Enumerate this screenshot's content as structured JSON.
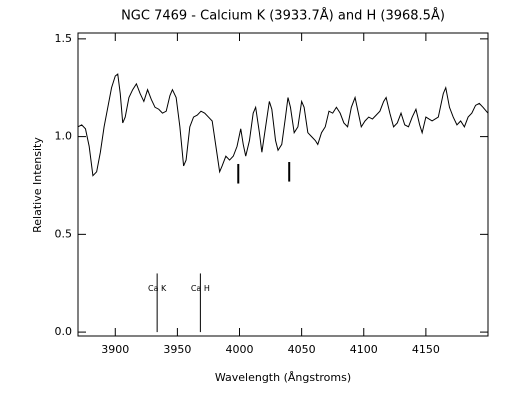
{
  "chart_data": {
    "type": "line",
    "title": "NGC 7469 - Calcium K (3933.7Å) and H (3968.5Å)",
    "xlabel": "Wavelength (Ångstroms)",
    "ylabel": "Relative Intensity",
    "color": "#000000",
    "xlim": [
      3870,
      4200
    ],
    "ylim": [
      -0.02,
      1.53
    ],
    "xticks": [
      3900,
      3950,
      4000,
      4050,
      4100,
      4150
    ],
    "yticks": [
      {
        "value": 0,
        "label": "0.0"
      },
      0.5,
      {
        "value": 1,
        "label": "1.0"
      },
      1.5
    ],
    "x": [
      3870,
      3873,
      3876,
      3879,
      3882,
      3885,
      3888,
      3891,
      3894,
      3897,
      3900,
      3902,
      3904,
      3906,
      3908,
      3911,
      3914,
      3917,
      3920,
      3923,
      3926,
      3929,
      3932,
      3935,
      3938,
      3941,
      3944,
      3946,
      3949,
      3952,
      3955,
      3957,
      3960,
      3963,
      3966,
      3969,
      3972,
      3975,
      3978,
      3981,
      3984,
      3986,
      3989,
      3992,
      3995,
      3998,
      4001,
      4003,
      4005,
      4008,
      4011,
      4013,
      4016,
      4018,
      4021,
      4024,
      4026,
      4029,
      4031,
      4034,
      4037,
      4039,
      4041,
      4044,
      4047,
      4050,
      4052,
      4055,
      4058,
      4061,
      4063,
      4066,
      4069,
      4072,
      4075,
      4078,
      4081,
      4084,
      4087,
      4090,
      4093,
      4095,
      4098,
      4101,
      4104,
      4107,
      4110,
      4113,
      4116,
      4118,
      4121,
      4124,
      4127,
      4130,
      4133,
      4136,
      4139,
      4142,
      4145,
      4147,
      4150,
      4155,
      4160,
      4164,
      4166,
      4169,
      4172,
      4175,
      4178,
      4181,
      4184,
      4187,
      4190,
      4193,
      4196,
      4200
    ],
    "values": [
      1.05,
      1.06,
      1.04,
      0.95,
      0.8,
      0.82,
      0.92,
      1.05,
      1.15,
      1.25,
      1.31,
      1.32,
      1.22,
      1.07,
      1.1,
      1.2,
      1.24,
      1.27,
      1.22,
      1.18,
      1.24,
      1.19,
      1.15,
      1.14,
      1.12,
      1.13,
      1.21,
      1.24,
      1.2,
      1.05,
      0.85,
      0.88,
      1.05,
      1.1,
      1.11,
      1.13,
      1.12,
      1.1,
      1.08,
      0.95,
      0.82,
      0.85,
      0.9,
      0.88,
      0.9,
      0.95,
      1.04,
      0.96,
      0.9,
      0.98,
      1.12,
      1.15,
      1.02,
      0.92,
      1.05,
      1.18,
      1.14,
      0.98,
      0.93,
      0.96,
      1.1,
      1.2,
      1.15,
      1.02,
      1.05,
      1.18,
      1.15,
      1.02,
      1.0,
      0.98,
      0.96,
      1.02,
      1.05,
      1.13,
      1.12,
      1.15,
      1.12,
      1.07,
      1.05,
      1.15,
      1.2,
      1.14,
      1.05,
      1.08,
      1.1,
      1.09,
      1.11,
      1.13,
      1.18,
      1.2,
      1.12,
      1.05,
      1.07,
      1.12,
      1.06,
      1.05,
      1.1,
      1.14,
      1.06,
      1.02,
      1.1,
      1.08,
      1.1,
      1.22,
      1.25,
      1.15,
      1.1,
      1.06,
      1.08,
      1.05,
      1.1,
      1.12,
      1.16,
      1.17,
      1.15,
      1.12
    ],
    "annotations": [
      {
        "label": "Ca K",
        "x": 3933.7,
        "y": [
          0,
          0.3
        ]
      },
      {
        "label": "Ca H",
        "x": 3968.5,
        "y": [
          0,
          0.3
        ]
      }
    ],
    "markers": [
      {
        "x": 3999,
        "y": [
          0.76,
          0.86
        ]
      },
      {
        "x": 4040,
        "y": [
          0.77,
          0.87
        ]
      }
    ]
  }
}
